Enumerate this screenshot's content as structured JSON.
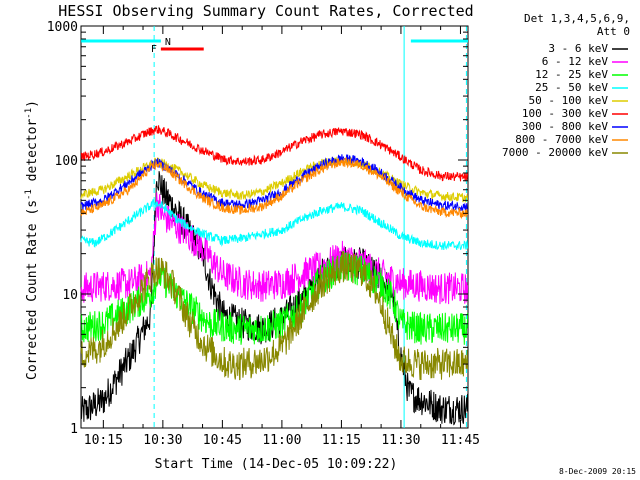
{
  "chart_data": {
    "type": "line",
    "title": "HESSI Observing Summary Count Rates, Corrected",
    "xlabel": "Start Time (14-Dec-05 10:09:22)",
    "ylabel_main": "Corrected Count Rate (s",
    "ylabel_sup1": "-1",
    "ylabel_mid": " detector",
    "ylabel_sup2": "-1",
    "ylabel_end": ")",
    "ylog": true,
    "ylim": [
      1,
      1000
    ],
    "xlim_min": [
      9.37,
      106.9
    ],
    "xticks": [
      {
        "m": 15,
        "label": "10:15"
      },
      {
        "m": 30,
        "label": "10:30"
      },
      {
        "m": 45,
        "label": "10:45"
      },
      {
        "m": 60,
        "label": "11:00"
      },
      {
        "m": 75,
        "label": "11:15"
      },
      {
        "m": 90,
        "label": "11:30"
      },
      {
        "m": 105,
        "label": "11:45"
      }
    ],
    "yticks": [
      {
        "v": 1,
        "label": "1"
      },
      {
        "v": 10,
        "label": "10"
      },
      {
        "v": 100,
        "label": "100"
      },
      {
        "v": 1000,
        "label": "1000"
      }
    ],
    "legend_header": [
      "Det 1,3,4,5,6,9,",
      "Att 0"
    ],
    "legend_position": "right",
    "series": [
      {
        "name": "3 - 6 keV",
        "color": "#000000",
        "points": [
          [
            9.4,
            1.3
          ],
          [
            15,
            1.6
          ],
          [
            22,
            3.5
          ],
          [
            27,
            7
          ],
          [
            28.5,
            80
          ],
          [
            30,
            58
          ],
          [
            35,
            35
          ],
          [
            40,
            20
          ],
          [
            42,
            12
          ],
          [
            45,
            7
          ],
          [
            50,
            6
          ],
          [
            55,
            5.5
          ],
          [
            60,
            6.5
          ],
          [
            65,
            9
          ],
          [
            70,
            14
          ],
          [
            75,
            17
          ],
          [
            80,
            17
          ],
          [
            85,
            13
          ],
          [
            88,
            10
          ],
          [
            89.5,
            4
          ],
          [
            92,
            1.8
          ],
          [
            100,
            1.4
          ],
          [
            106.9,
            1.4
          ]
        ]
      },
      {
        "name": "6 - 12 keV",
        "color": "#ff00ff",
        "points": [
          [
            9.4,
            11
          ],
          [
            15,
            11.5
          ],
          [
            22,
            12
          ],
          [
            27,
            14
          ],
          [
            28.5,
            50
          ],
          [
            30,
            38
          ],
          [
            35,
            30
          ],
          [
            40,
            22
          ],
          [
            45,
            14
          ],
          [
            50,
            12
          ],
          [
            55,
            11.5
          ],
          [
            60,
            12
          ],
          [
            65,
            14
          ],
          [
            70,
            16
          ],
          [
            75,
            19
          ],
          [
            80,
            17
          ],
          [
            85,
            14
          ],
          [
            90,
            12
          ],
          [
            95,
            11.5
          ],
          [
            100,
            11
          ],
          [
            106.9,
            11
          ]
        ]
      },
      {
        "name": "12 - 25 keV",
        "color": "#00ff00",
        "points": [
          [
            9.4,
            5.5
          ],
          [
            15,
            6
          ],
          [
            22,
            8
          ],
          [
            27,
            10
          ],
          [
            29,
            14
          ],
          [
            32,
            11
          ],
          [
            37,
            8
          ],
          [
            42,
            6
          ],
          [
            48,
            5.5
          ],
          [
            55,
            5.5
          ],
          [
            60,
            6
          ],
          [
            65,
            8
          ],
          [
            70,
            13
          ],
          [
            75,
            16
          ],
          [
            80,
            15
          ],
          [
            85,
            12
          ],
          [
            88,
            9
          ],
          [
            90,
            6
          ],
          [
            95,
            5.5
          ],
          [
            100,
            5.5
          ],
          [
            106.9,
            5.5
          ]
        ]
      },
      {
        "name": "25 - 50 keV",
        "color": "#00ffff",
        "points": [
          [
            9.4,
            25
          ],
          [
            13,
            24
          ],
          [
            18,
            30
          ],
          [
            24,
            40
          ],
          [
            28,
            48
          ],
          [
            30,
            45
          ],
          [
            34,
            35
          ],
          [
            40,
            28
          ],
          [
            45,
            25
          ],
          [
            50,
            26
          ],
          [
            55,
            28
          ],
          [
            60,
            30
          ],
          [
            65,
            36
          ],
          [
            70,
            42
          ],
          [
            75,
            45
          ],
          [
            80,
            42
          ],
          [
            85,
            34
          ],
          [
            90,
            27
          ],
          [
            95,
            24
          ],
          [
            100,
            23
          ],
          [
            106.9,
            23
          ]
        ]
      },
      {
        "name": "50 - 100 keV",
        "color": "#ddcc00",
        "points": [
          [
            9.4,
            55
          ],
          [
            15,
            60
          ],
          [
            22,
            78
          ],
          [
            26,
            90
          ],
          [
            28.5,
            97
          ],
          [
            31,
            92
          ],
          [
            35,
            80
          ],
          [
            40,
            65
          ],
          [
            45,
            57
          ],
          [
            50,
            54
          ],
          [
            55,
            58
          ],
          [
            60,
            67
          ],
          [
            65,
            82
          ],
          [
            70,
            95
          ],
          [
            75,
            100
          ],
          [
            80,
            95
          ],
          [
            85,
            80
          ],
          [
            90,
            66
          ],
          [
            95,
            57
          ],
          [
            100,
            54
          ],
          [
            106.9,
            52
          ]
        ]
      },
      {
        "name": "100 - 300 keV",
        "color": "#ff0000",
        "points": [
          [
            9.4,
            105
          ],
          [
            15,
            115
          ],
          [
            22,
            140
          ],
          [
            26,
            160
          ],
          [
            28.5,
            170
          ],
          [
            31,
            160
          ],
          [
            35,
            140
          ],
          [
            40,
            118
          ],
          [
            45,
            102
          ],
          [
            50,
            97
          ],
          [
            55,
            100
          ],
          [
            60,
            115
          ],
          [
            65,
            138
          ],
          [
            70,
            155
          ],
          [
            75,
            165
          ],
          [
            80,
            155
          ],
          [
            85,
            130
          ],
          [
            90,
            105
          ],
          [
            95,
            84
          ],
          [
            100,
            76
          ],
          [
            106.9,
            74
          ]
        ]
      },
      {
        "name": "300 - 800 keV",
        "color": "#0000ff",
        "points": [
          [
            9.4,
            45
          ],
          [
            15,
            50
          ],
          [
            22,
            70
          ],
          [
            26,
            86
          ],
          [
            28.5,
            96
          ],
          [
            31,
            88
          ],
          [
            35,
            72
          ],
          [
            40,
            56
          ],
          [
            45,
            48
          ],
          [
            50,
            46
          ],
          [
            55,
            50
          ],
          [
            60,
            58
          ],
          [
            65,
            75
          ],
          [
            70,
            92
          ],
          [
            75,
            103
          ],
          [
            80,
            98
          ],
          [
            85,
            80
          ],
          [
            90,
            62
          ],
          [
            95,
            50
          ],
          [
            100,
            46
          ],
          [
            106.9,
            45
          ]
        ]
      },
      {
        "name": "800 - 7000 keV",
        "color": "#ff8800",
        "points": [
          [
            9.4,
            40
          ],
          [
            15,
            46
          ],
          [
            22,
            62
          ],
          [
            26,
            82
          ],
          [
            28.5,
            94
          ],
          [
            31,
            86
          ],
          [
            35,
            68
          ],
          [
            40,
            52
          ],
          [
            45,
            44
          ],
          [
            50,
            42
          ],
          [
            55,
            45
          ],
          [
            60,
            54
          ],
          [
            65,
            70
          ],
          [
            70,
            86
          ],
          [
            75,
            97
          ],
          [
            80,
            92
          ],
          [
            85,
            75
          ],
          [
            90,
            57
          ],
          [
            95,
            45
          ],
          [
            100,
            41
          ],
          [
            106.9,
            40
          ]
        ]
      },
      {
        "name": "7000 - 20000 keV",
        "color": "#888800",
        "points": [
          [
            9.4,
            3.5
          ],
          [
            14,
            4
          ],
          [
            19,
            6
          ],
          [
            24,
            10
          ],
          [
            28,
            15
          ],
          [
            30,
            15
          ],
          [
            33,
            11
          ],
          [
            37,
            6
          ],
          [
            41,
            4
          ],
          [
            46,
            3
          ],
          [
            50,
            3
          ],
          [
            55,
            3.2
          ],
          [
            60,
            4
          ],
          [
            65,
            7
          ],
          [
            70,
            12
          ],
          [
            75,
            16
          ],
          [
            80,
            15
          ],
          [
            84,
            10
          ],
          [
            86,
            7
          ],
          [
            88,
            4.5
          ],
          [
            90,
            3.2
          ],
          [
            95,
            3
          ],
          [
            100,
            3
          ],
          [
            106.9,
            3
          ]
        ]
      }
    ],
    "annotations": [
      {
        "label": "F",
        "color": "#ff0000"
      },
      {
        "label": "N",
        "color": "#00ffff"
      }
    ],
    "bars": {
      "night": [
        [
          9.4,
          29.5
        ],
        [
          92.5,
          106.9
        ]
      ],
      "flare": [
        [
          29.5,
          40.3
        ]
      ]
    },
    "vlines": [
      {
        "m": 27.8
      },
      {
        "m": 90.8
      },
      {
        "m": 106.5
      }
    ]
  },
  "timestamp": "8-Dec-2009 20:15"
}
